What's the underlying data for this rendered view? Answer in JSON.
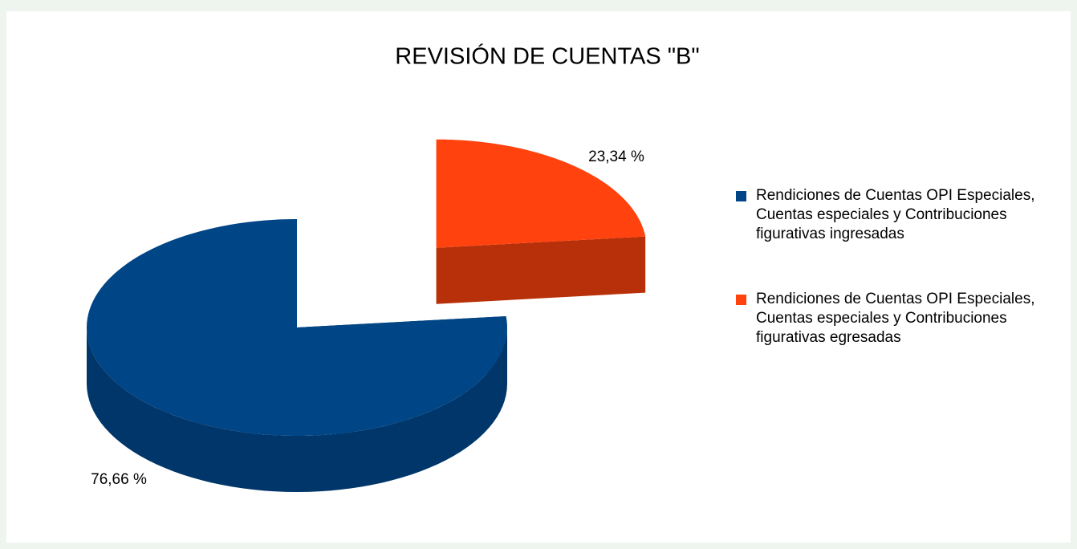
{
  "chart_data": {
    "type": "pie",
    "title": "REVISIÓN DE CUENTAS \"B\"",
    "categories": [
      "Rendiciones de Cuentas OPI Especiales, Cuentas especiales y Contribuciones figurativas ingresadas",
      "Rendiciones de Cuentas OPI Especiales, Cuentas especiales y Contribuciones figurativas egresadas"
    ],
    "values": [
      76.66,
      23.34
    ],
    "value_labels": [
      "76,66 %",
      "23,34 %"
    ],
    "colors": [
      "#004586",
      "#ff420e"
    ],
    "legend": "right"
  }
}
